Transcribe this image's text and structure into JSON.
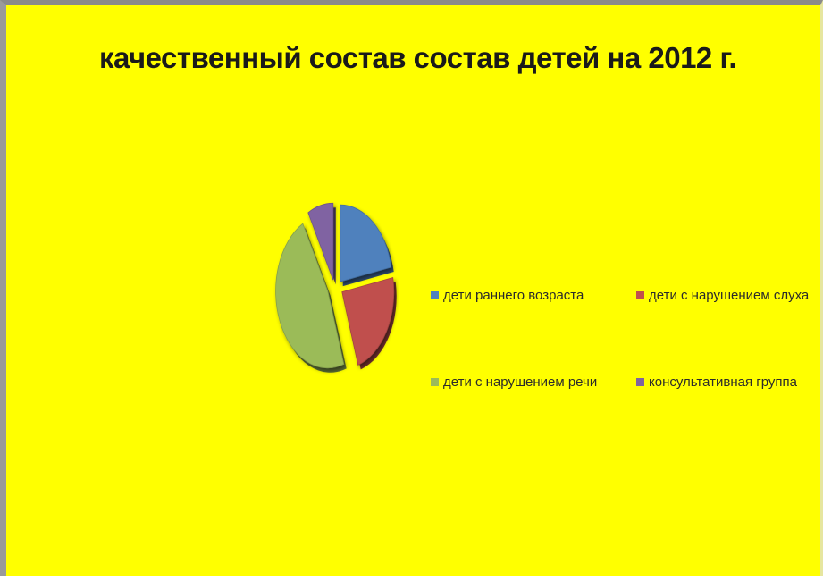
{
  "chart_data": {
    "type": "pie",
    "title": "качественный состав состав детей на 2012 г.",
    "categories": [
      "дети раннего возраста",
      "дети с нарушением слуха",
      "дети с нарушением речи",
      "консультативная группа"
    ],
    "values": [
      22,
      23,
      47,
      8
    ],
    "unit": "%",
    "colors": [
      "#4f81bd",
      "#c0504d",
      "#9bbb59",
      "#8064a2"
    ],
    "style": "3D exploded pie",
    "legend_position": "right"
  },
  "colors": {
    "background": "#ffff00"
  }
}
